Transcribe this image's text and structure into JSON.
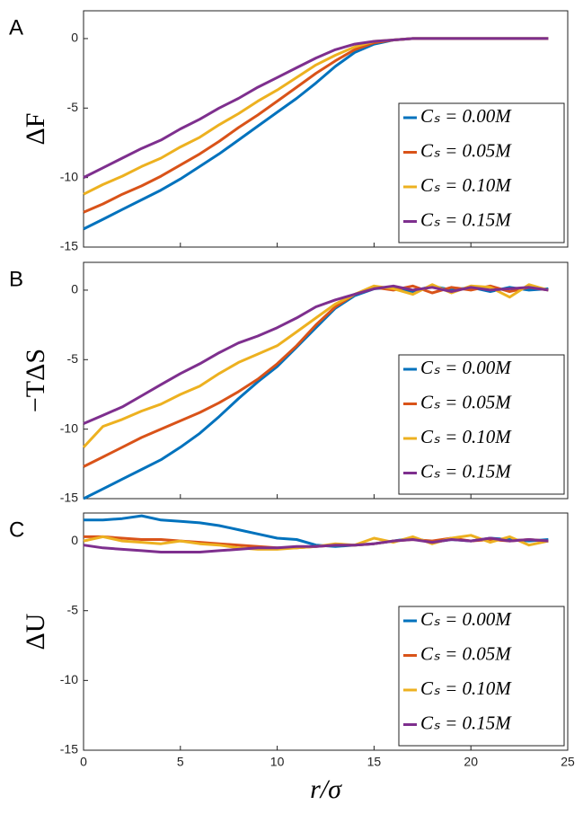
{
  "chart_data": [
    {
      "type": "line",
      "panel": "A",
      "ylabel": "ΔF",
      "xlim": [
        0,
        25
      ],
      "xticks": [
        0,
        5,
        10,
        15,
        20,
        25
      ],
      "ylim": [
        -15,
        2
      ],
      "yticks": [
        -15,
        -10,
        -5,
        0
      ],
      "legend": "lower right",
      "x": [
        0,
        1,
        2,
        3,
        4,
        5,
        6,
        7,
        8,
        9,
        10,
        11,
        12,
        13,
        14,
        15,
        16,
        17,
        18,
        19,
        20,
        21,
        22,
        23,
        24
      ],
      "series": [
        {
          "name": "Cₛ = 0.00M",
          "color": "#0072bd",
          "values": [
            -13.7,
            -13.0,
            -12.3,
            -11.6,
            -10.9,
            -10.1,
            -9.2,
            -8.3,
            -7.3,
            -6.3,
            -5.3,
            -4.3,
            -3.2,
            -2.0,
            -1.0,
            -0.4,
            -0.1,
            0,
            0,
            0,
            0,
            0,
            0,
            0,
            0
          ]
        },
        {
          "name": "Cₛ = 0.05M",
          "color": "#d95319",
          "values": [
            -12.5,
            -11.9,
            -11.2,
            -10.6,
            -9.9,
            -9.1,
            -8.3,
            -7.4,
            -6.4,
            -5.5,
            -4.5,
            -3.5,
            -2.5,
            -1.6,
            -0.8,
            -0.3,
            -0.1,
            0,
            0,
            0,
            0,
            0,
            0,
            0,
            0
          ]
        },
        {
          "name": "Cₛ = 0.10M",
          "color": "#edb120",
          "values": [
            -11.2,
            -10.5,
            -9.9,
            -9.2,
            -8.6,
            -7.8,
            -7.1,
            -6.2,
            -5.4,
            -4.5,
            -3.7,
            -2.8,
            -1.9,
            -1.2,
            -0.6,
            -0.2,
            -0.1,
            0,
            0,
            0,
            0,
            0,
            0,
            0,
            0
          ]
        },
        {
          "name": "Cₛ = 0.15M",
          "color": "#7e2f8e",
          "values": [
            -10.0,
            -9.3,
            -8.6,
            -7.9,
            -7.3,
            -6.5,
            -5.8,
            -5.0,
            -4.3,
            -3.5,
            -2.8,
            -2.1,
            -1.4,
            -0.8,
            -0.4,
            -0.2,
            -0.1,
            0,
            0,
            0,
            0,
            0,
            0,
            0,
            0
          ]
        }
      ]
    },
    {
      "type": "line",
      "panel": "B",
      "ylabel": "−TΔS",
      "xlim": [
        0,
        25
      ],
      "xticks": [
        0,
        5,
        10,
        15,
        20,
        25
      ],
      "ylim": [
        -15,
        2
      ],
      "yticks": [
        -15,
        -10,
        -5,
        0
      ],
      "legend": "lower right",
      "x": [
        0,
        1,
        2,
        3,
        4,
        5,
        6,
        7,
        8,
        9,
        10,
        11,
        12,
        13,
        14,
        15,
        16,
        17,
        18,
        19,
        20,
        21,
        22,
        23,
        24
      ],
      "series": [
        {
          "name": "Cₛ = 0.00M",
          "color": "#0072bd",
          "values": [
            -15,
            -14.3,
            -13.6,
            -12.9,
            -12.2,
            -11.3,
            -10.3,
            -9.1,
            -7.8,
            -6.6,
            -5.5,
            -4.1,
            -2.7,
            -1.3,
            -0.4,
            0.1,
            0.2,
            -0.1,
            0.3,
            0,
            0.2,
            -0.1,
            0.2,
            0,
            0.1
          ]
        },
        {
          "name": "Cₛ = 0.05M",
          "color": "#d95319",
          "values": [
            -12.7,
            -12.0,
            -11.3,
            -10.6,
            -10.0,
            -9.4,
            -8.8,
            -8.1,
            -7.3,
            -6.4,
            -5.3,
            -4.0,
            -2.5,
            -1.2,
            -0.3,
            0.2,
            0,
            0.3,
            -0.2,
            0.2,
            0,
            0.3,
            -0.1,
            0.2,
            0
          ]
        },
        {
          "name": "Cₛ = 0.10M",
          "color": "#edb120",
          "values": [
            -11.3,
            -9.8,
            -9.3,
            -8.7,
            -8.2,
            -7.5,
            -6.9,
            -6.0,
            -5.2,
            -4.6,
            -4.0,
            -3.0,
            -2.0,
            -1.0,
            -0.3,
            0.3,
            0.1,
            -0.3,
            0.4,
            -0.2,
            0.3,
            0.2,
            -0.5,
            0.4,
            0
          ]
        },
        {
          "name": "Cₛ = 0.15M",
          "color": "#7e2f8e",
          "values": [
            -9.6,
            -9.0,
            -8.4,
            -7.6,
            -6.8,
            -6.0,
            -5.3,
            -4.5,
            -3.8,
            -3.3,
            -2.7,
            -2.0,
            -1.2,
            -0.7,
            -0.3,
            0.1,
            0.3,
            0,
            0.2,
            -0.1,
            0.2,
            0,
            0.1,
            0.2,
            0
          ]
        }
      ]
    },
    {
      "type": "line",
      "panel": "C",
      "ylabel": "ΔU",
      "xlabel": "r/σ",
      "xlim": [
        0,
        25
      ],
      "xticks": [
        0,
        5,
        10,
        15,
        20,
        25
      ],
      "ylim": [
        -15,
        2
      ],
      "yticks": [
        -15,
        -10,
        -5,
        0
      ],
      "legend": "lower right",
      "x": [
        0,
        1,
        2,
        3,
        4,
        5,
        6,
        7,
        8,
        9,
        10,
        11,
        12,
        13,
        14,
        15,
        16,
        17,
        18,
        19,
        20,
        21,
        22,
        23,
        24
      ],
      "series": [
        {
          "name": "Cₛ = 0.00M",
          "color": "#0072bd",
          "values": [
            1.5,
            1.5,
            1.6,
            1.8,
            1.5,
            1.4,
            1.3,
            1.1,
            0.8,
            0.5,
            0.2,
            0.1,
            -0.3,
            -0.4,
            -0.3,
            -0.2,
            0,
            0.2,
            -0.1,
            0.1,
            0,
            0.2,
            0.1,
            0,
            0.1
          ]
        },
        {
          "name": "Cₛ = 0.05M",
          "color": "#d95319",
          "values": [
            0.3,
            0.3,
            0.2,
            0.1,
            0.1,
            0,
            -0.1,
            -0.2,
            -0.3,
            -0.4,
            -0.5,
            -0.5,
            -0.4,
            -0.3,
            -0.3,
            -0.2,
            0,
            0.1,
            0,
            0.2,
            0,
            0.1,
            0,
            0.1,
            0
          ]
        },
        {
          "name": "Cₛ = 0.10M",
          "color": "#edb120",
          "values": [
            0,
            0.3,
            0,
            -0.1,
            -0.2,
            0,
            -0.2,
            -0.3,
            -0.5,
            -0.6,
            -0.6,
            -0.5,
            -0.4,
            -0.2,
            -0.3,
            0.2,
            -0.1,
            0.3,
            -0.2,
            0.2,
            0.4,
            -0.1,
            0.3,
            -0.3,
            0
          ]
        },
        {
          "name": "Cₛ = 0.15M",
          "color": "#7e2f8e",
          "values": [
            -0.3,
            -0.5,
            -0.6,
            -0.7,
            -0.8,
            -0.8,
            -0.8,
            -0.7,
            -0.6,
            -0.5,
            -0.5,
            -0.4,
            -0.4,
            -0.3,
            -0.3,
            -0.2,
            0,
            0.1,
            -0.1,
            0.1,
            0,
            0.2,
            0,
            0.1,
            0
          ]
        }
      ]
    }
  ]
}
